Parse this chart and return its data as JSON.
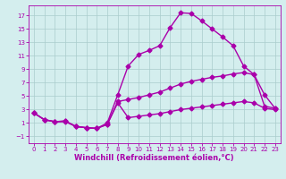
{
  "title": "",
  "xlabel": "Windchill (Refroidissement éolien,°C)",
  "xlim": [
    -0.5,
    23.5
  ],
  "ylim": [
    -2,
    18.5
  ],
  "xticks": [
    0,
    1,
    2,
    3,
    4,
    5,
    6,
    7,
    8,
    9,
    10,
    11,
    12,
    13,
    14,
    15,
    16,
    17,
    18,
    19,
    20,
    21,
    22,
    23
  ],
  "yticks": [
    -1,
    1,
    3,
    5,
    7,
    9,
    11,
    13,
    15,
    17
  ],
  "background_color": "#d4eeee",
  "grid_color": "#aacccc",
  "line_color": "#aa00aa",
  "line1_x": [
    0,
    1,
    2,
    3,
    4,
    5,
    6,
    7,
    8,
    9,
    10,
    11,
    12,
    13,
    14,
    15,
    16,
    17,
    18,
    19,
    20,
    21,
    22,
    23
  ],
  "line1_y": [
    2.5,
    1.5,
    1.2,
    1.2,
    0.5,
    0.3,
    0.2,
    1.0,
    5.2,
    9.5,
    11.2,
    11.8,
    12.5,
    15.2,
    17.4,
    17.3,
    16.2,
    15.0,
    13.8,
    12.5,
    9.5,
    8.2,
    5.2,
    3.2
  ],
  "line2_x": [
    0,
    1,
    2,
    3,
    4,
    5,
    6,
    7,
    8,
    9,
    10,
    11,
    12,
    13,
    14,
    15,
    16,
    17,
    18,
    19,
    20,
    21,
    22,
    23
  ],
  "line2_y": [
    2.5,
    1.5,
    1.2,
    1.3,
    0.5,
    0.3,
    0.2,
    0.8,
    4.2,
    4.5,
    4.8,
    5.2,
    5.6,
    6.2,
    6.8,
    7.2,
    7.5,
    7.8,
    8.0,
    8.3,
    8.5,
    8.2,
    3.5,
    3.2
  ],
  "line3_x": [
    0,
    1,
    2,
    3,
    4,
    5,
    6,
    7,
    8,
    9,
    10,
    11,
    12,
    13,
    14,
    15,
    16,
    17,
    18,
    19,
    20,
    21,
    22,
    23
  ],
  "line3_y": [
    2.5,
    1.5,
    1.2,
    1.3,
    0.5,
    0.3,
    0.2,
    0.8,
    4.0,
    1.8,
    2.0,
    2.2,
    2.4,
    2.7,
    3.0,
    3.2,
    3.4,
    3.6,
    3.8,
    4.0,
    4.2,
    4.0,
    3.2,
    3.0
  ],
  "marker": "D",
  "markersize": 2.5,
  "linewidth": 1.0,
  "tick_fontsize": 5.0,
  "label_fontsize": 6.0
}
